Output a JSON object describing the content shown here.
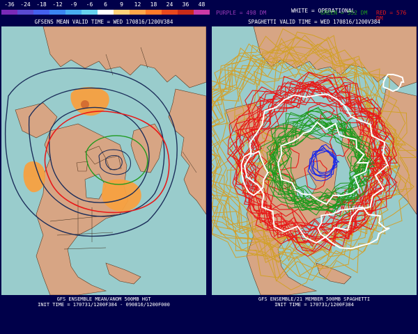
{
  "scale": {
    "ticks": [
      "-36",
      "-24",
      "-18",
      "-12",
      "-9",
      "-6",
      "6",
      "9",
      "12",
      "18",
      "24",
      "36",
      "48"
    ],
    "colors": [
      "#7a2ab8",
      "#5a4ad2",
      "#4460ee",
      "#3a86f2",
      "#48aef0",
      "#66d2ee",
      "#ffffff",
      "#ffd27a",
      "#ffa64a",
      "#ff7a2a",
      "#e8481e",
      "#c82a1a",
      "#cc3aa6"
    ]
  },
  "left_panel": {
    "title": "GFSENS MEAN VALID TIME = WED 170816/1200V384",
    "caption_line1": "GFS ENSEMBLE MEAN/ANOM 500MB HGT",
    "caption_line2": "INIT TIME = 170731/1200F384 - 090816/1200F000"
  },
  "right_panel": {
    "title": "SPAGHETTI VALID TIME = WED 170816/1200V384",
    "legend_purple": "PURPLE = 498 DM",
    "legend_white": "WHITE = OPERATIONAL",
    "legend_green": "GREEN = 552 DM",
    "legend_red": "RED = 576 DM",
    "caption_line1": "GFS ENSEMBLE/21 MEMBER 500MB SPAGHETTI",
    "caption_line2": "INIT TIME = 170731/1200F384"
  },
  "colors": {
    "background": "#00004a",
    "ocean": "#99cccc",
    "land": "#d7a584",
    "border": "#3a2a1a",
    "anomaly": "#f7a040",
    "mean_contour": "#1c2e5a",
    "red": "#e81818",
    "green": "#1e9a1e",
    "blue": "#1a2ae8",
    "orange": "#d2a02a",
    "white": "#ffffff",
    "purple": "#9a3ab8"
  }
}
